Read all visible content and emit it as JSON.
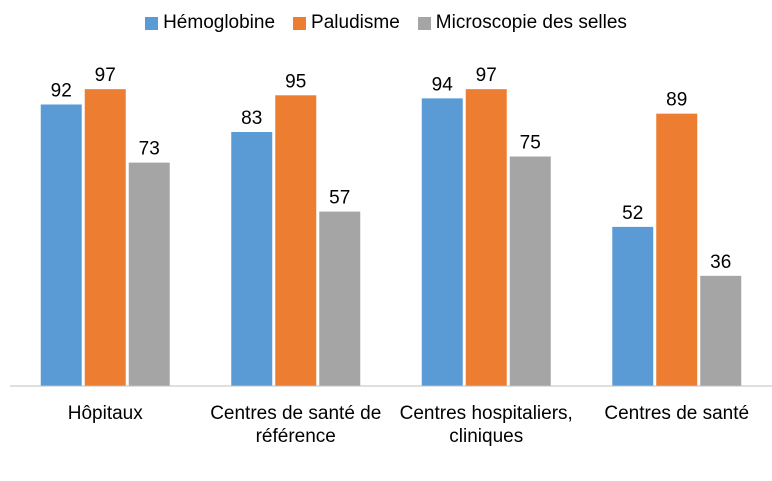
{
  "chart_data": {
    "type": "bar",
    "categories": [
      "Hôpitaux",
      "Centres de santé de référence",
      "Centres hospitaliers, cliniques",
      "Centres de santé"
    ],
    "series": [
      {
        "name": "Hémoglobine",
        "color": "#5b9bd5",
        "values": [
          92,
          83,
          94,
          52
        ]
      },
      {
        "name": "Paludisme",
        "color": "#ed7d31",
        "values": [
          97,
          95,
          97,
          89
        ]
      },
      {
        "name": "Microscopie des selles",
        "color": "#a5a5a5",
        "values": [
          73,
          57,
          75,
          36
        ]
      }
    ],
    "ylim": [
      0,
      100
    ],
    "legend": "top"
  }
}
